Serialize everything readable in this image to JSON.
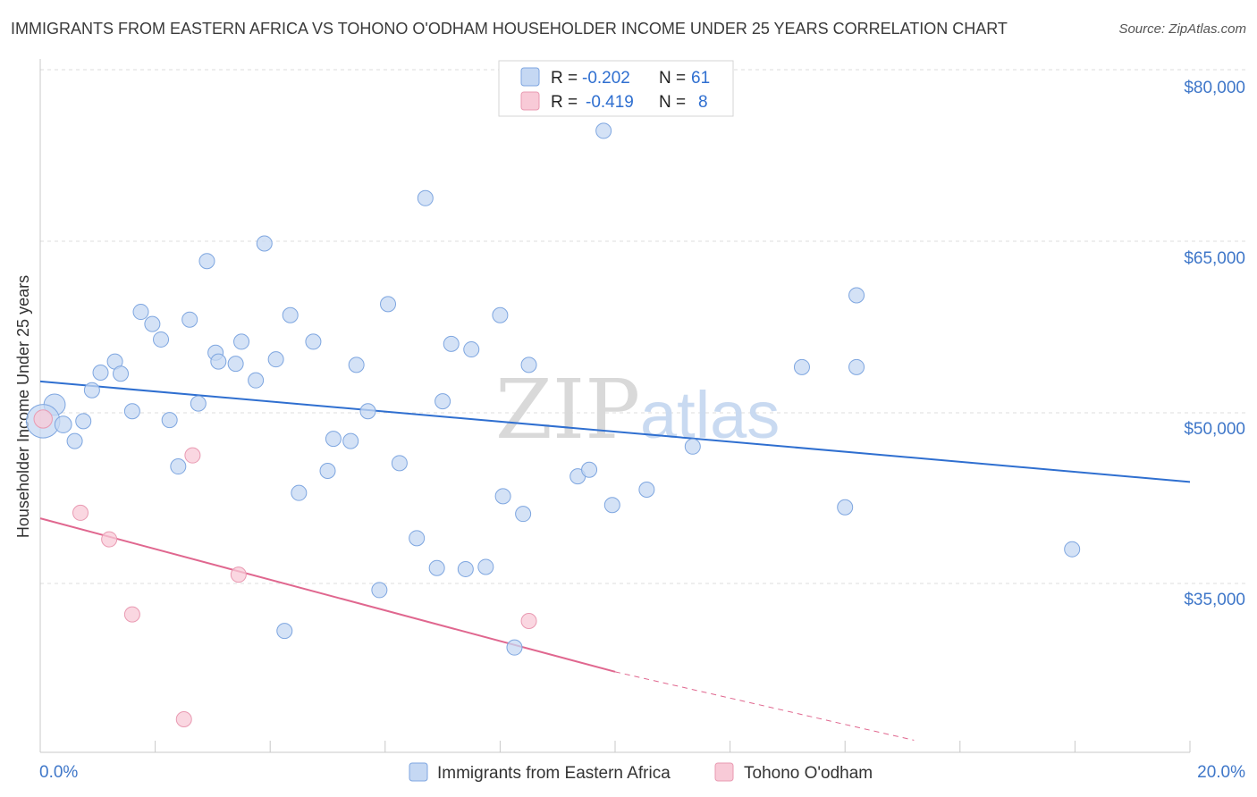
{
  "title": "IMMIGRANTS FROM EASTERN AFRICA VS TOHONO O'ODHAM HOUSEHOLDER INCOME UNDER 25 YEARS CORRELATION CHART",
  "source": "Source: ZipAtlas.com",
  "watermark": {
    "zip": "ZIP",
    "atlas": "atlas"
  },
  "colors": {
    "blue_fill": "#c5d8f3",
    "blue_stroke": "#7ea6e0",
    "blue_line": "#2f6fd0",
    "pink_fill": "#f8cad7",
    "pink_stroke": "#e99ab2",
    "pink_line": "#e0678f",
    "label_blue": "#3f77c9",
    "grid": "#dcdcdc"
  },
  "legend": {
    "rows": [
      {
        "r_label": "R =",
        "r_value": "-0.202",
        "n_label": "N =",
        "n_value": "61",
        "series": "blue"
      },
      {
        "r_label": "R =",
        "r_value": "-0.419",
        "n_label": "N =",
        "n_value": "8",
        "series": "pink"
      }
    ]
  },
  "chart_data": {
    "type": "scatter",
    "title": "IMMIGRANTS FROM EASTERN AFRICA VS TOHONO O'ODHAM HOUSEHOLDER INCOME UNDER 25 YEARS CORRELATION CHART",
    "xlabel": "",
    "ylabel": "Householder Income Under 25 years",
    "xlim": [
      0,
      20
    ],
    "ylim": [
      20000,
      83000
    ],
    "x_tick_labels": [
      "0.0%",
      "20.0%"
    ],
    "y_ticks": [
      {
        "value": 80000,
        "label": "$80,000"
      },
      {
        "value": 65000,
        "label": "$65,000"
      },
      {
        "value": 50000,
        "label": "$50,000"
      },
      {
        "value": 35000,
        "label": "$35,000"
      }
    ],
    "grid": true,
    "series": [
      {
        "name": "Immigrants from Eastern Africa",
        "color": "blue",
        "trend": {
          "x": [
            0,
            20
          ],
          "y": [
            53300,
            44200
          ]
        },
        "points": [
          [
            0.25,
            51200,
            14
          ],
          [
            0.05,
            49700,
            22
          ],
          [
            0.4,
            49400,
            11
          ],
          [
            0.6,
            47900,
            10
          ],
          [
            0.75,
            49700,
            10
          ],
          [
            0.9,
            52500,
            10
          ],
          [
            1.05,
            54100,
            10
          ],
          [
            1.3,
            55100,
            10
          ],
          [
            1.4,
            54000,
            10
          ],
          [
            1.6,
            50600,
            10
          ],
          [
            1.75,
            59600,
            10
          ],
          [
            1.95,
            58500,
            10
          ],
          [
            2.1,
            57100,
            10
          ],
          [
            2.25,
            49800,
            10
          ],
          [
            2.4,
            45600,
            10
          ],
          [
            2.6,
            58900,
            10
          ],
          [
            2.75,
            51300,
            10
          ],
          [
            2.9,
            64200,
            10
          ],
          [
            3.05,
            55900,
            10
          ],
          [
            3.1,
            55100,
            10
          ],
          [
            3.4,
            54900,
            10
          ],
          [
            3.5,
            56900,
            10
          ],
          [
            3.75,
            53400,
            10
          ],
          [
            3.9,
            65800,
            10
          ],
          [
            4.1,
            55300,
            10
          ],
          [
            4.25,
            30700,
            10
          ],
          [
            4.35,
            59300,
            10
          ],
          [
            4.5,
            43200,
            10
          ],
          [
            4.75,
            56900,
            10
          ],
          [
            5.0,
            45200,
            10
          ],
          [
            5.1,
            48100,
            10
          ],
          [
            5.4,
            47900,
            10
          ],
          [
            5.5,
            54800,
            10
          ],
          [
            5.7,
            50600,
            10
          ],
          [
            5.9,
            34400,
            10
          ],
          [
            6.05,
            60300,
            10
          ],
          [
            6.25,
            45900,
            10
          ],
          [
            6.55,
            39100,
            10
          ],
          [
            6.7,
            69900,
            10
          ],
          [
            6.9,
            36400,
            10
          ],
          [
            7.0,
            51500,
            10
          ],
          [
            7.15,
            56700,
            10
          ],
          [
            7.4,
            36300,
            10
          ],
          [
            7.5,
            56200,
            10
          ],
          [
            7.75,
            36500,
            10
          ],
          [
            8.0,
            59300,
            10
          ],
          [
            8.05,
            42900,
            10
          ],
          [
            8.25,
            29200,
            10
          ],
          [
            8.4,
            41300,
            10
          ],
          [
            8.5,
            54800,
            10
          ],
          [
            9.35,
            44700,
            10
          ],
          [
            9.55,
            45300,
            10
          ],
          [
            9.8,
            76000,
            10
          ],
          [
            9.95,
            42100,
            10
          ],
          [
            10.55,
            43500,
            10
          ],
          [
            11.35,
            47400,
            10
          ],
          [
            13.25,
            54600,
            10
          ],
          [
            14.2,
            61100,
            10
          ],
          [
            14.2,
            54600,
            10
          ],
          [
            14.0,
            41900,
            10
          ],
          [
            17.95,
            38100,
            10
          ]
        ]
      },
      {
        "name": "Tohono O'odham",
        "color": "pink",
        "trend": {
          "x": [
            0,
            10
          ],
          "y": [
            40900,
            27000
          ]
        },
        "trend_dashed": {
          "x": [
            10,
            15.2
          ],
          "y": [
            27000,
            20800
          ]
        },
        "points": [
          [
            0.05,
            49900,
            12
          ],
          [
            0.7,
            41400,
            10
          ],
          [
            1.2,
            39000,
            10
          ],
          [
            1.6,
            32200,
            10
          ],
          [
            2.5,
            22700,
            10
          ],
          [
            2.65,
            46600,
            10
          ],
          [
            3.45,
            35800,
            10
          ],
          [
            8.5,
            31600,
            10
          ]
        ]
      }
    ]
  },
  "bottom_legend": [
    {
      "label": "Immigrants from Eastern Africa",
      "series": "blue"
    },
    {
      "label": "Tohono O'odham",
      "series": "pink"
    }
  ]
}
